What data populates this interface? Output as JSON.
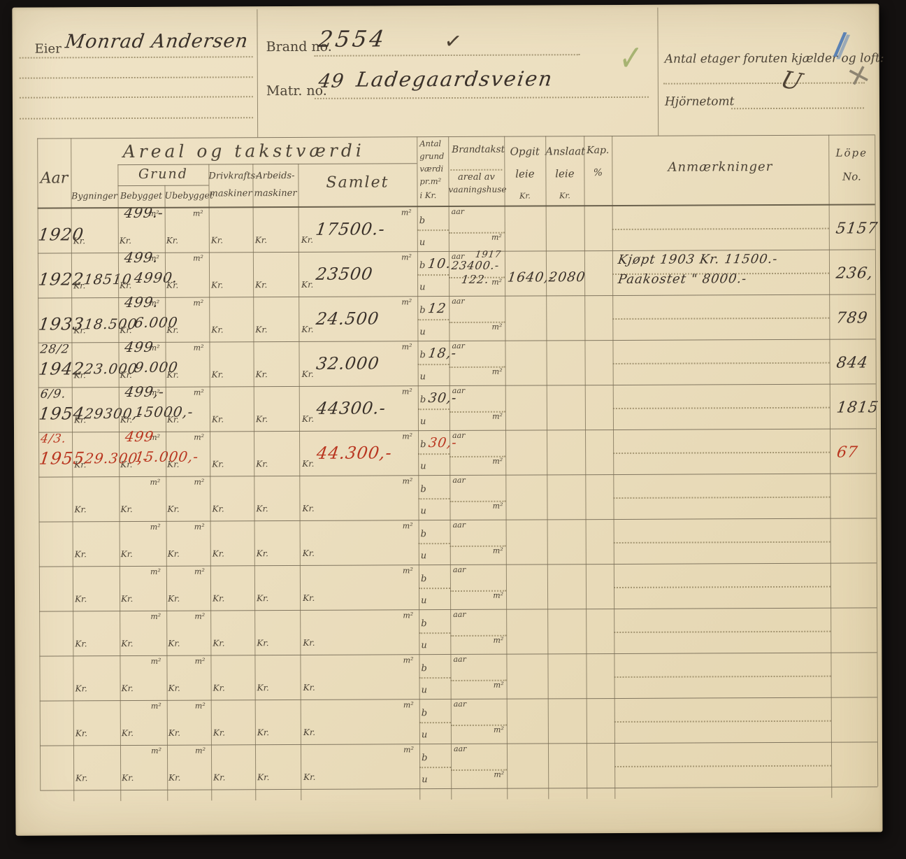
{
  "header": {
    "eier_label": "Eier",
    "eier_value": "Monrad Andersen",
    "brand_label": "Brand no.",
    "brand_value": "2554",
    "matr_label": "Matr. no.",
    "matr_no": "49",
    "matr_street": "Ladegaardsveien",
    "etager_label": "Antal etager foruten kjælder og loft:",
    "hjornetomt_label": "Hjörnetomt",
    "marks": {
      "brand_check": "✓",
      "green_check": "✓",
      "blue_pencil_stroke": "∕",
      "pencil_cross": "+",
      "etager_check_u": "U"
    },
    "ink_colors": {
      "red": "#b93620",
      "green": "#96a95f",
      "blue": "#5b82b4",
      "pencil": "#8d8471"
    }
  },
  "table": {
    "headers": {
      "aar": "Aar",
      "areal_group": "Areal  og  takstværdi",
      "grund_group": "Grund",
      "bygninger": "Bygninger",
      "bebygget": "Bebygget",
      "ubebygget": "Ubebygget",
      "drivkrafts_1": "Drivkrafts-",
      "drivkrafts_2": "maskiner",
      "arbeids_1": "Arbeids-",
      "arbeids_2": "maskiner",
      "samlet": "Samlet",
      "antal_1": "Antal",
      "antal_2": "grund",
      "antal_3": "værdi",
      "antal_4": "pr.m²",
      "antal_5": "i Kr.",
      "brandtakst": "Brandtakst",
      "brandtakst_2": "areal av",
      "brandtakst_3": "vaaningshuse",
      "opgit_1": "Opgit",
      "opgit_2": "leie",
      "kr": "Kr.",
      "anslaat_1": "Anslaat",
      "anslaat_2": "leie",
      "kap_1": "Kap.",
      "kap_2": "%",
      "anmaerkninger": "Anmærkninger",
      "lope_1": "Löpe",
      "lope_2": "No."
    },
    "placeholders": {
      "m2": "m²",
      "kr": "Kr.",
      "aar": "aar",
      "b": "b",
      "u": "u"
    },
    "rows": [
      {
        "date": "",
        "year": "1920",
        "byg": "",
        "beb_m2": "499.-",
        "beb_kr": "",
        "samlet": "17500.-",
        "b": "",
        "bt_aar": "",
        "bt_sum": "",
        "bt_m2": "",
        "opgit": "",
        "anslaat": "",
        "anm1": "",
        "anm2": "",
        "lope": "5157",
        "red": false
      },
      {
        "date": "",
        "year": "1922",
        "byg": "18510",
        "beb_m2": "499.",
        "beb_kr": "4990.",
        "samlet": "23500",
        "b": "10.",
        "bt_aar": "1917",
        "bt_sum": "23400.-",
        "bt_m2": "122.",
        "opgit": "1640,-",
        "anslaat": "2080",
        "anm1": "Kjøpt 1903 Kr. 11500.-",
        "anm2": "Paakostet \" 8000.-",
        "lope": "236,",
        "red": false
      },
      {
        "date": "",
        "year": "1933",
        "byg": "18.500",
        "beb_m2": "499.",
        "beb_kr": "6.000",
        "samlet": "24.500",
        "b": "12",
        "bt_aar": "",
        "bt_sum": "",
        "bt_m2": "",
        "opgit": "",
        "anslaat": "",
        "anm1": "",
        "anm2": "",
        "lope": "789",
        "red": false
      },
      {
        "date": "28/2",
        "year": "1942",
        "byg": "23.000",
        "beb_m2": "499",
        "beb_kr": "9.000",
        "samlet": "32.000",
        "b": "18,-",
        "bt_aar": "",
        "bt_sum": "",
        "bt_m2": "",
        "opgit": "",
        "anslaat": "",
        "anm1": "",
        "anm2": "",
        "lope": "844",
        "red": false
      },
      {
        "date": "6/9.",
        "year": "1954",
        "byg": "29300,-",
        "beb_m2": "499,-",
        "beb_kr": "15000,-",
        "samlet": "44300.-",
        "b": "30,-",
        "bt_aar": "",
        "bt_sum": "",
        "bt_m2": "",
        "opgit": "",
        "anslaat": "",
        "anm1": "",
        "anm2": "",
        "lope": "1815",
        "red": false
      },
      {
        "date": "4/3.",
        "year": "1955",
        "byg": "29.300,-",
        "beb_m2": "499",
        "beb_kr": "15.000,-",
        "samlet": "44.300,-",
        "b": "30,-",
        "bt_aar": "",
        "bt_sum": "",
        "bt_m2": "",
        "opgit": "",
        "anslaat": "",
        "anm1": "",
        "anm2": "",
        "lope": "67",
        "red": true
      },
      {
        "date": "",
        "year": "",
        "byg": "",
        "beb_m2": "",
        "beb_kr": "",
        "samlet": "",
        "b": "",
        "bt_aar": "",
        "bt_sum": "",
        "bt_m2": "",
        "opgit": "",
        "anslaat": "",
        "anm1": "",
        "anm2": "",
        "lope": "",
        "red": false
      },
      {
        "date": "",
        "year": "",
        "byg": "",
        "beb_m2": "",
        "beb_kr": "",
        "samlet": "",
        "b": "",
        "bt_aar": "",
        "bt_sum": "",
        "bt_m2": "",
        "opgit": "",
        "anslaat": "",
        "anm1": "",
        "anm2": "",
        "lope": "",
        "red": false
      },
      {
        "date": "",
        "year": "",
        "byg": "",
        "beb_m2": "",
        "beb_kr": "",
        "samlet": "",
        "b": "",
        "bt_aar": "",
        "bt_sum": "",
        "bt_m2": "",
        "opgit": "",
        "anslaat": "",
        "anm1": "",
        "anm2": "",
        "lope": "",
        "red": false
      },
      {
        "date": "",
        "year": "",
        "byg": "",
        "beb_m2": "",
        "beb_kr": "",
        "samlet": "",
        "b": "",
        "bt_aar": "",
        "bt_sum": "",
        "bt_m2": "",
        "opgit": "",
        "anslaat": "",
        "anm1": "",
        "anm2": "",
        "lope": "",
        "red": false
      },
      {
        "date": "",
        "year": "",
        "byg": "",
        "beb_m2": "",
        "beb_kr": "",
        "samlet": "",
        "b": "",
        "bt_aar": "",
        "bt_sum": "",
        "bt_m2": "",
        "opgit": "",
        "anslaat": "",
        "anm1": "",
        "anm2": "",
        "lope": "",
        "red": false
      },
      {
        "date": "",
        "year": "",
        "byg": "",
        "beb_m2": "",
        "beb_kr": "",
        "samlet": "",
        "b": "",
        "bt_aar": "",
        "bt_sum": "",
        "bt_m2": "",
        "opgit": "",
        "anslaat": "",
        "anm1": "",
        "anm2": "",
        "lope": "",
        "red": false
      },
      {
        "date": "",
        "year": "",
        "byg": "",
        "beb_m2": "",
        "beb_kr": "",
        "samlet": "",
        "b": "",
        "bt_aar": "",
        "bt_sum": "",
        "bt_m2": "",
        "opgit": "",
        "anslaat": "",
        "anm1": "",
        "anm2": "",
        "lope": "",
        "red": false
      }
    ]
  }
}
